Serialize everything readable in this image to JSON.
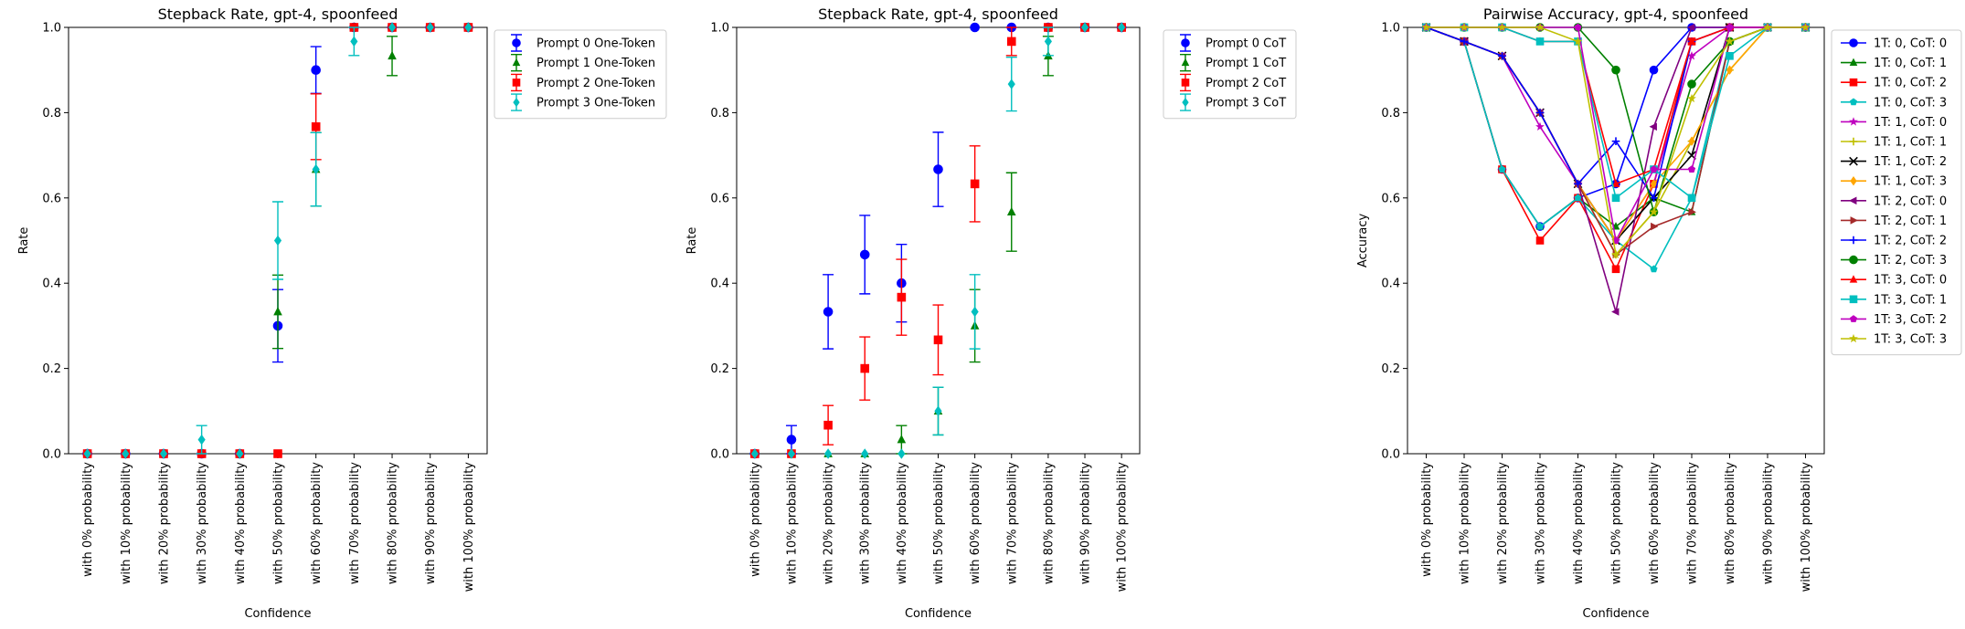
{
  "chart_data": [
    {
      "type": "scatter",
      "title": "Stepback Rate, gpt-4, spoonfeed",
      "xlabel": "Confidence",
      "ylabel": "Rate",
      "ylim": [
        0,
        1
      ],
      "yticks": [
        "0.0",
        "0.2",
        "0.4",
        "0.6",
        "0.8",
        "1.0"
      ],
      "categories": [
        "with 0% probability",
        "with 10% probability",
        "with 20% probability",
        "with 30% probability",
        "with 40% probability",
        "with 50% probability",
        "with 60% probability",
        "with 70% probability",
        "with 80% probability",
        "with 90% probability",
        "with 100% probability"
      ],
      "legend_position": "outside-upper-right",
      "series": [
        {
          "name": "Prompt 0 One-Token",
          "color": "#0000ff",
          "marker": "circle",
          "values": [
            0,
            0,
            0,
            0,
            0,
            0.3,
            0.9,
            1.0,
            1.0,
            1.0,
            1.0
          ],
          "errors": [
            0,
            0,
            0,
            0,
            0,
            0.085,
            0.055,
            0,
            0,
            0,
            0
          ]
        },
        {
          "name": "Prompt 1 One-Token",
          "color": "#008000",
          "marker": "triangle",
          "values": [
            0,
            0,
            0,
            0,
            0,
            0.333,
            0.667,
            1.0,
            0.933,
            1.0,
            1.0
          ],
          "errors": [
            0,
            0,
            0,
            0,
            0,
            0.086,
            0.086,
            0,
            0.046,
            0,
            0
          ]
        },
        {
          "name": "Prompt 2 One-Token",
          "color": "#ff0000",
          "marker": "square",
          "values": [
            0,
            0,
            0,
            0,
            0,
            0,
            0.767,
            1.0,
            1.0,
            1.0,
            1.0
          ],
          "errors": [
            0,
            0,
            0,
            0,
            0,
            0,
            0.077,
            0,
            0,
            0,
            0
          ]
        },
        {
          "name": "Prompt 3 One-Token",
          "color": "#00bfbf",
          "marker": "diamond",
          "values": [
            0,
            0,
            0,
            0.033,
            0,
            0.5,
            0.667,
            0.967,
            1.0,
            1.0,
            1.0
          ],
          "errors": [
            0,
            0,
            0,
            0.033,
            0,
            0.091,
            0.086,
            0.033,
            0,
            0,
            0
          ]
        }
      ]
    },
    {
      "type": "scatter",
      "title": "Stepback Rate, gpt-4, spoonfeed",
      "xlabel": "Confidence",
      "ylabel": "Rate",
      "ylim": [
        0,
        1
      ],
      "yticks": [
        "0.0",
        "0.2",
        "0.4",
        "0.6",
        "0.8",
        "1.0"
      ],
      "categories": [
        "with 0% probability",
        "with 10% probability",
        "with 20% probability",
        "with 30% probability",
        "with 40% probability",
        "with 50% probability",
        "with 60% probability",
        "with 70% probability",
        "with 80% probability",
        "with 90% probability",
        "with 100% probability"
      ],
      "legend_position": "outside-upper-right",
      "series": [
        {
          "name": "Prompt 0 CoT",
          "color": "#0000ff",
          "marker": "circle",
          "values": [
            0,
            0.033,
            0.333,
            0.467,
            0.4,
            0.667,
            1.0,
            1.0,
            1.0,
            1.0,
            1.0
          ],
          "errors": [
            0,
            0.033,
            0.087,
            0.092,
            0.091,
            0.087,
            0,
            0,
            0,
            0,
            0
          ]
        },
        {
          "name": "Prompt 1 CoT",
          "color": "#008000",
          "marker": "triangle",
          "values": [
            0,
            0,
            0,
            0,
            0.033,
            0.1,
            0.3,
            0.567,
            0.933,
            1.0,
            1.0
          ],
          "errors": [
            0,
            0,
            0,
            0,
            0.033,
            0.056,
            0.085,
            0.092,
            0.046,
            0,
            0
          ]
        },
        {
          "name": "Prompt 2 CoT",
          "color": "#ff0000",
          "marker": "square",
          "values": [
            0,
            0,
            0.067,
            0.2,
            0.367,
            0.267,
            0.633,
            0.967,
            1.0,
            1.0,
            1.0
          ],
          "errors": [
            0,
            0,
            0.046,
            0.074,
            0.089,
            0.082,
            0.089,
            0.033,
            0,
            0,
            0
          ]
        },
        {
          "name": "Prompt 3 CoT",
          "color": "#00bfbf",
          "marker": "diamond",
          "values": [
            0,
            0,
            0,
            0,
            0,
            0.1,
            0.333,
            0.867,
            0.967,
            1.0,
            1.0
          ],
          "errors": [
            0,
            0,
            0,
            0,
            0,
            0.056,
            0.087,
            0.063,
            0.033,
            0,
            0
          ]
        }
      ]
    },
    {
      "type": "line",
      "title": "Pairwise Accuracy, gpt-4, spoonfeed",
      "xlabel": "Confidence",
      "ylabel": "Accuracy",
      "ylim": [
        0,
        1
      ],
      "yticks": [
        "0.0",
        "0.2",
        "0.4",
        "0.6",
        "0.8",
        "1.0"
      ],
      "categories": [
        "with 0% probability",
        "with 10% probability",
        "with 20% probability",
        "with 30% probability",
        "with 40% probability",
        "with 50% probability",
        "with 60% probability",
        "with 70% probability",
        "with 80% probability",
        "with 90% probability",
        "with 100% probability"
      ],
      "legend_position": "outside-upper-right",
      "series": [
        {
          "name": "1T: 0, CoT: 0",
          "color": "#0000ff",
          "marker": "circle",
          "values": [
            1.0,
            0.967,
            0.667,
            0.533,
            0.6,
            0.633,
            0.9,
            1.0,
            1.0,
            1.0,
            1.0
          ]
        },
        {
          "name": "1T: 0, CoT: 1",
          "color": "#008000",
          "marker": "triangle",
          "values": [
            1.0,
            0.967,
            0.667,
            0.533,
            0.6,
            0.533,
            0.6,
            0.567,
            0.967,
            1.0,
            1.0
          ]
        },
        {
          "name": "1T: 0, CoT: 2",
          "color": "#ff0000",
          "marker": "square",
          "values": [
            1.0,
            0.967,
            0.667,
            0.5,
            0.6,
            0.433,
            0.633,
            0.967,
            1.0,
            1.0,
            1.0
          ]
        },
        {
          "name": "1T: 0, CoT: 3",
          "color": "#00bfbf",
          "marker": "pentagon",
          "values": [
            1.0,
            0.967,
            0.667,
            0.533,
            0.6,
            0.5,
            0.433,
            0.6,
            0.967,
            1.0,
            1.0
          ]
        },
        {
          "name": "1T: 1, CoT: 0",
          "color": "#bf00bf",
          "marker": "star",
          "values": [
            1.0,
            0.967,
            0.933,
            0.767,
            0.633,
            0.5,
            0.633,
            0.933,
            1.0,
            1.0,
            1.0
          ]
        },
        {
          "name": "1T: 1, CoT: 1",
          "color": "#bfbf00",
          "marker": "plus",
          "values": [
            1.0,
            0.967,
            0.933,
            0.8,
            0.633,
            0.467,
            0.567,
            0.733,
            0.9,
            1.0,
            1.0
          ]
        },
        {
          "name": "1T: 1, CoT: 2",
          "color": "#000000",
          "marker": "x",
          "values": [
            1.0,
            0.967,
            0.933,
            0.8,
            0.633,
            0.5,
            0.6,
            0.7,
            1.0,
            1.0,
            1.0
          ]
        },
        {
          "name": "1T: 1, CoT: 3",
          "color": "#ffa500",
          "marker": "diamond",
          "values": [
            1.0,
            0.967,
            0.933,
            0.8,
            0.633,
            0.5,
            0.633,
            0.733,
            0.9,
            1.0,
            1.0
          ]
        },
        {
          "name": "1T: 2, CoT: 0",
          "color": "#800080",
          "marker": "triangle-left",
          "values": [
            1.0,
            0.967,
            0.933,
            0.8,
            0.633,
            0.333,
            0.767,
            1.0,
            1.0,
            1.0,
            1.0
          ]
        },
        {
          "name": "1T: 2, CoT: 1",
          "color": "#a52a2a",
          "marker": "triangle-right",
          "values": [
            1.0,
            0.967,
            0.933,
            0.8,
            0.633,
            0.467,
            0.533,
            0.567,
            0.967,
            1.0,
            1.0
          ]
        },
        {
          "name": "1T: 2, CoT: 2",
          "color": "#0000ff",
          "marker": "plus",
          "values": [
            1.0,
            0.967,
            0.933,
            0.8,
            0.633,
            0.733,
            0.6,
            0.967,
            1.0,
            1.0,
            1.0
          ]
        },
        {
          "name": "1T: 2, CoT: 3",
          "color": "#008000",
          "marker": "circle",
          "values": [
            1.0,
            1.0,
            1.0,
            1.0,
            1.0,
            0.9,
            0.567,
            0.867,
            0.967,
            1.0,
            1.0
          ]
        },
        {
          "name": "1T: 3, CoT: 0",
          "color": "#ff0000",
          "marker": "triangle",
          "values": [
            1.0,
            1.0,
            1.0,
            0.967,
            0.967,
            0.633,
            0.667,
            0.967,
            1.0,
            1.0,
            1.0
          ]
        },
        {
          "name": "1T: 3, CoT: 1",
          "color": "#00bfbf",
          "marker": "square",
          "values": [
            1.0,
            1.0,
            1.0,
            0.967,
            0.967,
            0.6,
            0.667,
            0.6,
            0.933,
            1.0,
            1.0
          ]
        },
        {
          "name": "1T: 3, CoT: 2",
          "color": "#bf00bf",
          "marker": "pentagon",
          "values": [
            1.0,
            1.0,
            1.0,
            1.0,
            1.0,
            0.5,
            0.667,
            0.667,
            1.0,
            1.0,
            1.0
          ]
        },
        {
          "name": "1T: 3, CoT: 3",
          "color": "#bfbf00",
          "marker": "star",
          "values": [
            1.0,
            1.0,
            1.0,
            1.0,
            0.967,
            0.467,
            0.567,
            0.833,
            0.967,
            1.0,
            1.0
          ]
        }
      ]
    }
  ]
}
